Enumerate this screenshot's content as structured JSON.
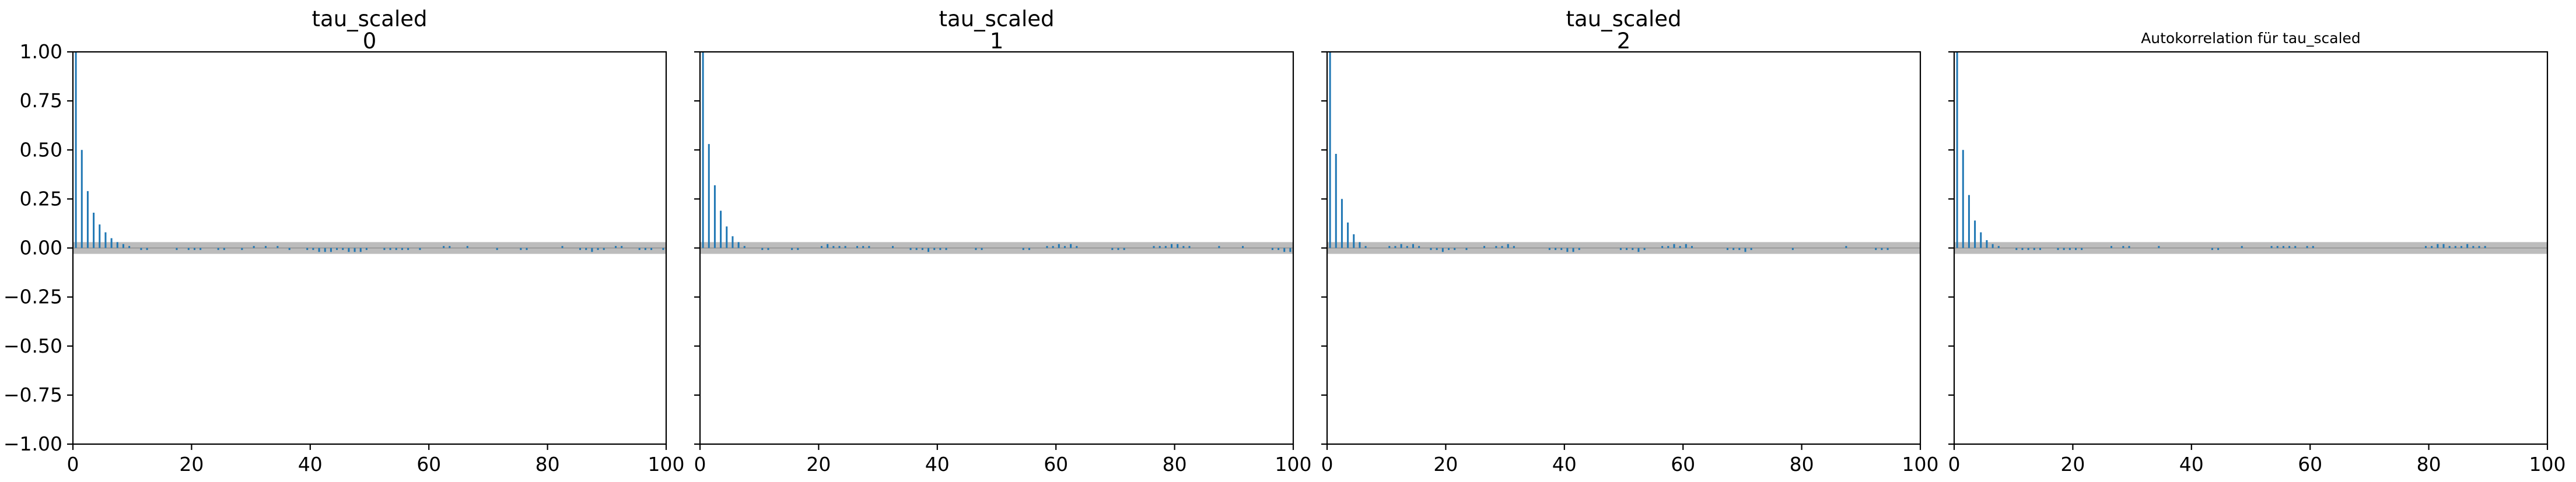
{
  "chart_data": [
    {
      "type": "bar",
      "title_lines": [
        "tau_scaled",
        "0"
      ],
      "xlim": [
        0,
        100
      ],
      "ylim": [
        -1.0,
        1.0
      ],
      "xticks": [
        0,
        20,
        40,
        60,
        80,
        100
      ],
      "yticks": [
        1.0,
        0.75,
        0.5,
        0.25,
        0.0,
        -0.25,
        -0.5,
        -0.75,
        -1.0
      ],
      "ytick_labels": [
        "1.00",
        "0.75",
        "0.50",
        "0.25",
        "0.00",
        "−0.25",
        "−0.50",
        "−0.75",
        "−1.00"
      ],
      "confidence_band": [
        -0.03,
        0.03
      ],
      "color": "#1f77b4",
      "lags": [
        0,
        1,
        2,
        3,
        4,
        5,
        6,
        7,
        8,
        9,
        10,
        11,
        12,
        13,
        14,
        15,
        16,
        17,
        18,
        19,
        20,
        21,
        22,
        23,
        24,
        25,
        26,
        27,
        28,
        29,
        30,
        31,
        32,
        33,
        34,
        35,
        36,
        37,
        38,
        39,
        40,
        41,
        42,
        43,
        44,
        45,
        46,
        47,
        48,
        49,
        50,
        51,
        52,
        53,
        54,
        55,
        56,
        57,
        58,
        59,
        60,
        61,
        62,
        63,
        64,
        65,
        66,
        67,
        68,
        69,
        70,
        71,
        72,
        73,
        74,
        75,
        76,
        77,
        78,
        79,
        80,
        81,
        82,
        83,
        84,
        85,
        86,
        87,
        88,
        89,
        90,
        91,
        92,
        93,
        94,
        95,
        96,
        97,
        98,
        99
      ],
      "values": [
        1.0,
        0.5,
        0.29,
        0.18,
        0.12,
        0.08,
        0.05,
        0.03,
        0.02,
        0.01,
        0.0,
        -0.01,
        -0.01,
        0.0,
        0.0,
        0.0,
        0.0,
        -0.01,
        0.0,
        -0.01,
        -0.01,
        -0.01,
        0.0,
        0.0,
        -0.01,
        -0.01,
        0.0,
        0.0,
        -0.01,
        0.0,
        0.01,
        0.0,
        0.01,
        0.0,
        0.01,
        0.0,
        -0.01,
        0.0,
        0.0,
        -0.01,
        -0.01,
        -0.02,
        -0.02,
        -0.02,
        -0.01,
        -0.01,
        -0.02,
        -0.02,
        -0.02,
        -0.01,
        0.0,
        0.0,
        -0.01,
        -0.01,
        -0.01,
        -0.01,
        -0.01,
        0.0,
        -0.01,
        0.0,
        0.0,
        0.0,
        0.01,
        0.01,
        0.0,
        0.0,
        0.01,
        0.0,
        0.0,
        0.0,
        0.0,
        -0.01,
        0.0,
        0.0,
        0.0,
        -0.01,
        -0.01,
        0.0,
        0.0,
        0.0,
        0.0,
        0.0,
        0.01,
        0.0,
        0.0,
        -0.01,
        -0.01,
        -0.02,
        -0.01,
        -0.01,
        0.0,
        0.01,
        0.01,
        0.0,
        0.0,
        -0.01,
        -0.01,
        -0.01,
        0.0,
        -0.01
      ]
    },
    {
      "type": "bar",
      "title_lines": [
        "tau_scaled",
        "1"
      ],
      "xlim": [
        0,
        100
      ],
      "ylim": [
        -1.0,
        1.0
      ],
      "xticks": [
        0,
        20,
        40,
        60,
        80,
        100
      ],
      "yticks": [
        1.0,
        0.75,
        0.5,
        0.25,
        0.0,
        -0.25,
        -0.5,
        -0.75,
        -1.0
      ],
      "confidence_band": [
        -0.03,
        0.03
      ],
      "color": "#1f77b4",
      "lags": [
        0,
        1,
        2,
        3,
        4,
        5,
        6,
        7,
        8,
        9,
        10,
        11,
        12,
        13,
        14,
        15,
        16,
        17,
        18,
        19,
        20,
        21,
        22,
        23,
        24,
        25,
        26,
        27,
        28,
        29,
        30,
        31,
        32,
        33,
        34,
        35,
        36,
        37,
        38,
        39,
        40,
        41,
        42,
        43,
        44,
        45,
        46,
        47,
        48,
        49,
        50,
        51,
        52,
        53,
        54,
        55,
        56,
        57,
        58,
        59,
        60,
        61,
        62,
        63,
        64,
        65,
        66,
        67,
        68,
        69,
        70,
        71,
        72,
        73,
        74,
        75,
        76,
        77,
        78,
        79,
        80,
        81,
        82,
        83,
        84,
        85,
        86,
        87,
        88,
        89,
        90,
        91,
        92,
        93,
        94,
        95,
        96,
        97,
        98,
        99
      ],
      "values": [
        1.0,
        0.53,
        0.32,
        0.19,
        0.11,
        0.06,
        0.03,
        0.01,
        0.0,
        0.0,
        -0.01,
        -0.01,
        0.0,
        0.0,
        0.0,
        -0.01,
        -0.01,
        0.0,
        0.0,
        0.0,
        0.01,
        0.02,
        0.01,
        0.01,
        0.01,
        0.0,
        0.01,
        0.01,
        0.01,
        0.0,
        0.0,
        0.0,
        0.01,
        0.0,
        0.0,
        -0.01,
        -0.01,
        -0.01,
        -0.02,
        -0.01,
        -0.01,
        -0.01,
        0.0,
        0.0,
        0.0,
        0.0,
        -0.01,
        -0.01,
        0.0,
        0.0,
        0.0,
        0.0,
        0.0,
        0.0,
        -0.01,
        -0.01,
        0.0,
        0.0,
        0.01,
        0.01,
        0.02,
        0.01,
        0.02,
        0.01,
        0.0,
        0.0,
        0.0,
        0.0,
        0.0,
        -0.01,
        -0.01,
        -0.01,
        0.0,
        0.0,
        0.0,
        0.0,
        0.01,
        0.01,
        0.01,
        0.02,
        0.02,
        0.01,
        0.01,
        0.0,
        0.0,
        0.0,
        0.0,
        0.01,
        0.0,
        0.0,
        0.0,
        0.01,
        0.0,
        0.0,
        0.0,
        0.0,
        -0.01,
        -0.01,
        -0.02,
        -0.02
      ]
    },
    {
      "type": "bar",
      "title_lines": [
        "tau_scaled",
        "2"
      ],
      "xlim": [
        0,
        100
      ],
      "ylim": [
        -1.0,
        1.0
      ],
      "xticks": [
        0,
        20,
        40,
        60,
        80,
        100
      ],
      "yticks": [
        1.0,
        0.75,
        0.5,
        0.25,
        0.0,
        -0.25,
        -0.5,
        -0.75,
        -1.0
      ],
      "confidence_band": [
        -0.03,
        0.03
      ],
      "color": "#1f77b4",
      "lags": [
        0,
        1,
        2,
        3,
        4,
        5,
        6,
        7,
        8,
        9,
        10,
        11,
        12,
        13,
        14,
        15,
        16,
        17,
        18,
        19,
        20,
        21,
        22,
        23,
        24,
        25,
        26,
        27,
        28,
        29,
        30,
        31,
        32,
        33,
        34,
        35,
        36,
        37,
        38,
        39,
        40,
        41,
        42,
        43,
        44,
        45,
        46,
        47,
        48,
        49,
        50,
        51,
        52,
        53,
        54,
        55,
        56,
        57,
        58,
        59,
        60,
        61,
        62,
        63,
        64,
        65,
        66,
        67,
        68,
        69,
        70,
        71,
        72,
        73,
        74,
        75,
        76,
        77,
        78,
        79,
        80,
        81,
        82,
        83,
        84,
        85,
        86,
        87,
        88,
        89,
        90,
        91,
        92,
        93,
        94,
        95,
        96,
        97,
        98,
        99
      ],
      "values": [
        1.0,
        0.48,
        0.25,
        0.13,
        0.07,
        0.03,
        0.01,
        0.0,
        0.0,
        0.0,
        0.01,
        0.01,
        0.02,
        0.01,
        0.02,
        0.01,
        0.0,
        -0.01,
        -0.01,
        -0.02,
        -0.01,
        -0.01,
        0.0,
        -0.01,
        0.0,
        0.0,
        0.01,
        0.0,
        0.01,
        0.01,
        0.02,
        0.01,
        0.0,
        0.0,
        0.0,
        0.0,
        0.0,
        -0.01,
        -0.01,
        -0.01,
        -0.02,
        -0.02,
        -0.01,
        0.0,
        0.0,
        0.0,
        0.0,
        0.0,
        0.0,
        -0.01,
        -0.01,
        -0.01,
        -0.02,
        -0.01,
        0.0,
        0.0,
        0.01,
        0.01,
        0.02,
        0.01,
        0.02,
        0.01,
        0.0,
        0.0,
        0.0,
        0.0,
        0.0,
        -0.01,
        -0.01,
        -0.01,
        -0.02,
        -0.01,
        0.0,
        0.0,
        0.0,
        0.0,
        0.0,
        0.0,
        -0.01,
        0.0,
        0.0,
        0.0,
        0.0,
        0.0,
        0.0,
        0.0,
        0.0,
        0.01,
        0.0,
        0.0,
        0.0,
        0.0,
        -0.01,
        -0.01,
        -0.01,
        0.0,
        0.0,
        0.0,
        0.0,
        0.0
      ]
    },
    {
      "type": "bar",
      "title_lines": [
        "Autokorrelation für tau_scaled"
      ],
      "title_small": true,
      "xlim": [
        0,
        100
      ],
      "ylim": [
        -1.0,
        1.0
      ],
      "xticks": [
        0,
        20,
        40,
        60,
        80,
        100
      ],
      "yticks": [
        1.0,
        0.75,
        0.5,
        0.25,
        0.0,
        -0.25,
        -0.5,
        -0.75,
        -1.0
      ],
      "confidence_band": [
        -0.03,
        0.03
      ],
      "color": "#1f77b4",
      "lags": [
        0,
        1,
        2,
        3,
        4,
        5,
        6,
        7,
        8,
        9,
        10,
        11,
        12,
        13,
        14,
        15,
        16,
        17,
        18,
        19,
        20,
        21,
        22,
        23,
        24,
        25,
        26,
        27,
        28,
        29,
        30,
        31,
        32,
        33,
        34,
        35,
        36,
        37,
        38,
        39,
        40,
        41,
        42,
        43,
        44,
        45,
        46,
        47,
        48,
        49,
        50,
        51,
        52,
        53,
        54,
        55,
        56,
        57,
        58,
        59,
        60,
        61,
        62,
        63,
        64,
        65,
        66,
        67,
        68,
        69,
        70,
        71,
        72,
        73,
        74,
        75,
        76,
        77,
        78,
        79,
        80,
        81,
        82,
        83,
        84,
        85,
        86,
        87,
        88,
        89,
        90,
        91,
        92,
        93,
        94,
        95,
        96,
        97,
        98,
        99
      ],
      "values": [
        1.0,
        0.5,
        0.27,
        0.14,
        0.08,
        0.04,
        0.02,
        0.01,
        0.0,
        0.0,
        -0.01,
        -0.01,
        -0.01,
        -0.01,
        -0.01,
        0.0,
        0.0,
        -0.01,
        -0.01,
        -0.01,
        -0.01,
        -0.01,
        0.0,
        0.0,
        0.0,
        0.0,
        0.01,
        0.0,
        0.01,
        0.01,
        0.0,
        0.0,
        0.0,
        0.0,
        0.01,
        0.0,
        0.0,
        0.0,
        0.0,
        0.0,
        0.0,
        0.0,
        0.0,
        -0.01,
        -0.01,
        0.0,
        0.0,
        0.0,
        0.01,
        0.0,
        0.0,
        0.0,
        0.0,
        0.01,
        0.01,
        0.01,
        0.01,
        0.01,
        0.0,
        0.01,
        0.01,
        0.0,
        0.0,
        0.0,
        0.0,
        0.0,
        0.0,
        0.0,
        0.0,
        0.0,
        0.0,
        0.0,
        0.0,
        0.0,
        0.0,
        0.0,
        0.0,
        0.0,
        0.0,
        0.01,
        0.01,
        0.02,
        0.02,
        0.01,
        0.01,
        0.01,
        0.02,
        0.01,
        0.01,
        0.01,
        0.0,
        0.0,
        0.0,
        0.0,
        0.0,
        0.0,
        0.0,
        0.0,
        0.0,
        0.0
      ]
    }
  ]
}
